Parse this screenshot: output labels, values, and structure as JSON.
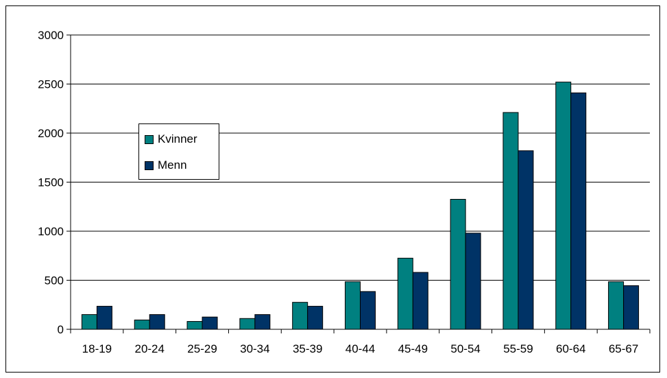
{
  "chart_data": {
    "type": "bar",
    "categories": [
      "18-19",
      "20-24",
      "25-29",
      "30-34",
      "35-39",
      "40-44",
      "45-49",
      "50-54",
      "55-59",
      "60-64",
      "65-67"
    ],
    "series": [
      {
        "name": "Kvinner",
        "color": "#008080",
        "values": [
          150,
          95,
          80,
          110,
          275,
          485,
          725,
          1325,
          2210,
          2520,
          485
        ]
      },
      {
        "name": "Menn",
        "color": "#003366",
        "values": [
          235,
          150,
          125,
          150,
          235,
          385,
          580,
          980,
          1820,
          2410,
          445
        ]
      }
    ],
    "ylim": [
      0,
      3000
    ],
    "yticks": [
      0,
      500,
      1000,
      1500,
      2000,
      2500,
      3000
    ],
    "grid": true,
    "legend_placement": "left, middle"
  }
}
